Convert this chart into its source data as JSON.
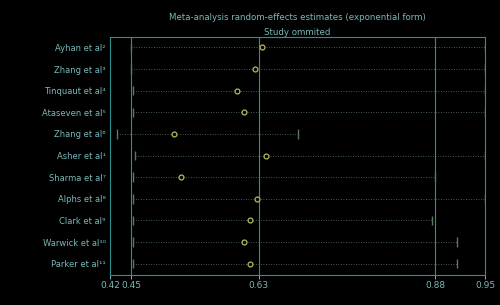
{
  "title_line1": "Meta-analysis random-effects estimates (exponential form)",
  "title_line2": "Study ommited",
  "background_color": "#000000",
  "text_color": "#7ab8b8",
  "line_color": "#5a7a5a",
  "point_color": "#b8b860",
  "vline_color": "#2a9090",
  "xmin": 0.42,
  "xmax": 0.95,
  "xticks": [
    0.42,
    0.45,
    0.63,
    0.88,
    0.95
  ],
  "xlabel_vals": [
    "0.42",
    "0.45",
    "0.63",
    "0.88",
    "0.95"
  ],
  "vlines": [
    0.45,
    0.63,
    0.88
  ],
  "studies": [
    "Ayhan et al²",
    "Zhang et al³",
    "Tinquaut et al⁴",
    "Ataseven et al⁵",
    "Zhang et al⁶",
    "Asher et al¹",
    "Sharma et al⁷",
    "Alphs et al⁸",
    "Clark et al⁹",
    "Warwick et al¹⁰",
    "Parker et al¹¹"
  ],
  "centers": [
    0.635,
    0.625,
    0.6,
    0.61,
    0.51,
    0.64,
    0.52,
    0.628,
    0.618,
    0.61,
    0.618
  ],
  "ci_low": [
    0.45,
    0.45,
    0.452,
    0.452,
    0.43,
    0.455,
    0.452,
    0.452,
    0.452,
    0.452,
    0.452
  ],
  "ci_high": [
    0.95,
    0.95,
    0.95,
    0.95,
    0.685,
    0.95,
    0.88,
    0.95,
    0.875,
    0.91,
    0.91
  ]
}
